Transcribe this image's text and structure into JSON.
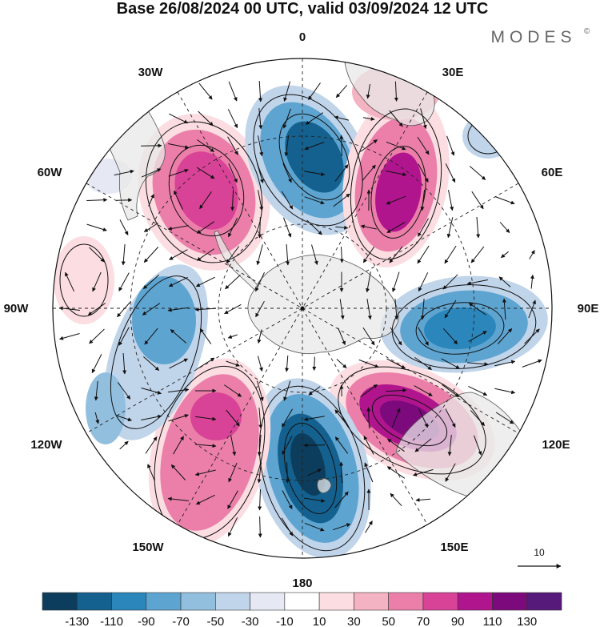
{
  "header": {
    "title": "Base 26/08/2024 00 UTC, valid 03/09/2024 12 UTC",
    "brand": "MODES",
    "brand_mark": "©"
  },
  "map": {
    "projection": "south-polar-stereographic",
    "longitude_labels": {
      "lon_0": "0",
      "lon_30e": "30E",
      "lon_60e": "60E",
      "lon_90e": "90E",
      "lon_120e": "120E",
      "lon_150e": "150E",
      "lon_180": "180",
      "lon_150w": "150W",
      "lon_120w": "120W",
      "lon_90w": "90W",
      "lon_60w": "60W",
      "lon_30w": "30W"
    },
    "reference_vector": {
      "label": "10"
    },
    "anomaly_centres": [
      {
        "sign": "positive",
        "approx_value": 90,
        "sector": "30W-60W"
      },
      {
        "sign": "negative",
        "approx_value": -110,
        "sector": "0-15E"
      },
      {
        "sign": "positive",
        "approx_value": 90,
        "sector": "30E-45E"
      },
      {
        "sign": "negative",
        "approx_value": -90,
        "sector": "90E-105E"
      },
      {
        "sign": "positive",
        "approx_value": 130,
        "sector": "110E-140E"
      },
      {
        "sign": "negative",
        "approx_value": -130,
        "sector": "170E-180"
      },
      {
        "sign": "positive",
        "approx_value": 90,
        "sector": "150W-170W"
      },
      {
        "sign": "negative",
        "approx_value": -70,
        "sector": "90W-120W"
      },
      {
        "sign": "positive",
        "approx_value": 30,
        "sector": "60W-90W"
      }
    ]
  },
  "colorbar": {
    "ticks": [
      "-130",
      "-110",
      "-90",
      "-70",
      "-50",
      "-30",
      "-10",
      "10",
      "30",
      "50",
      "70",
      "90",
      "110",
      "130"
    ],
    "colors": [
      "#0d3d5c",
      "#14618f",
      "#2b86bb",
      "#5ea4d0",
      "#93bfdf",
      "#c0d4ea",
      "#e6e9f4",
      "#ffffff",
      "#fbdde2",
      "#f4b3c2",
      "#eb7fa9",
      "#d94397",
      "#b0158d",
      "#7d0a7d",
      "#561a7a"
    ]
  }
}
